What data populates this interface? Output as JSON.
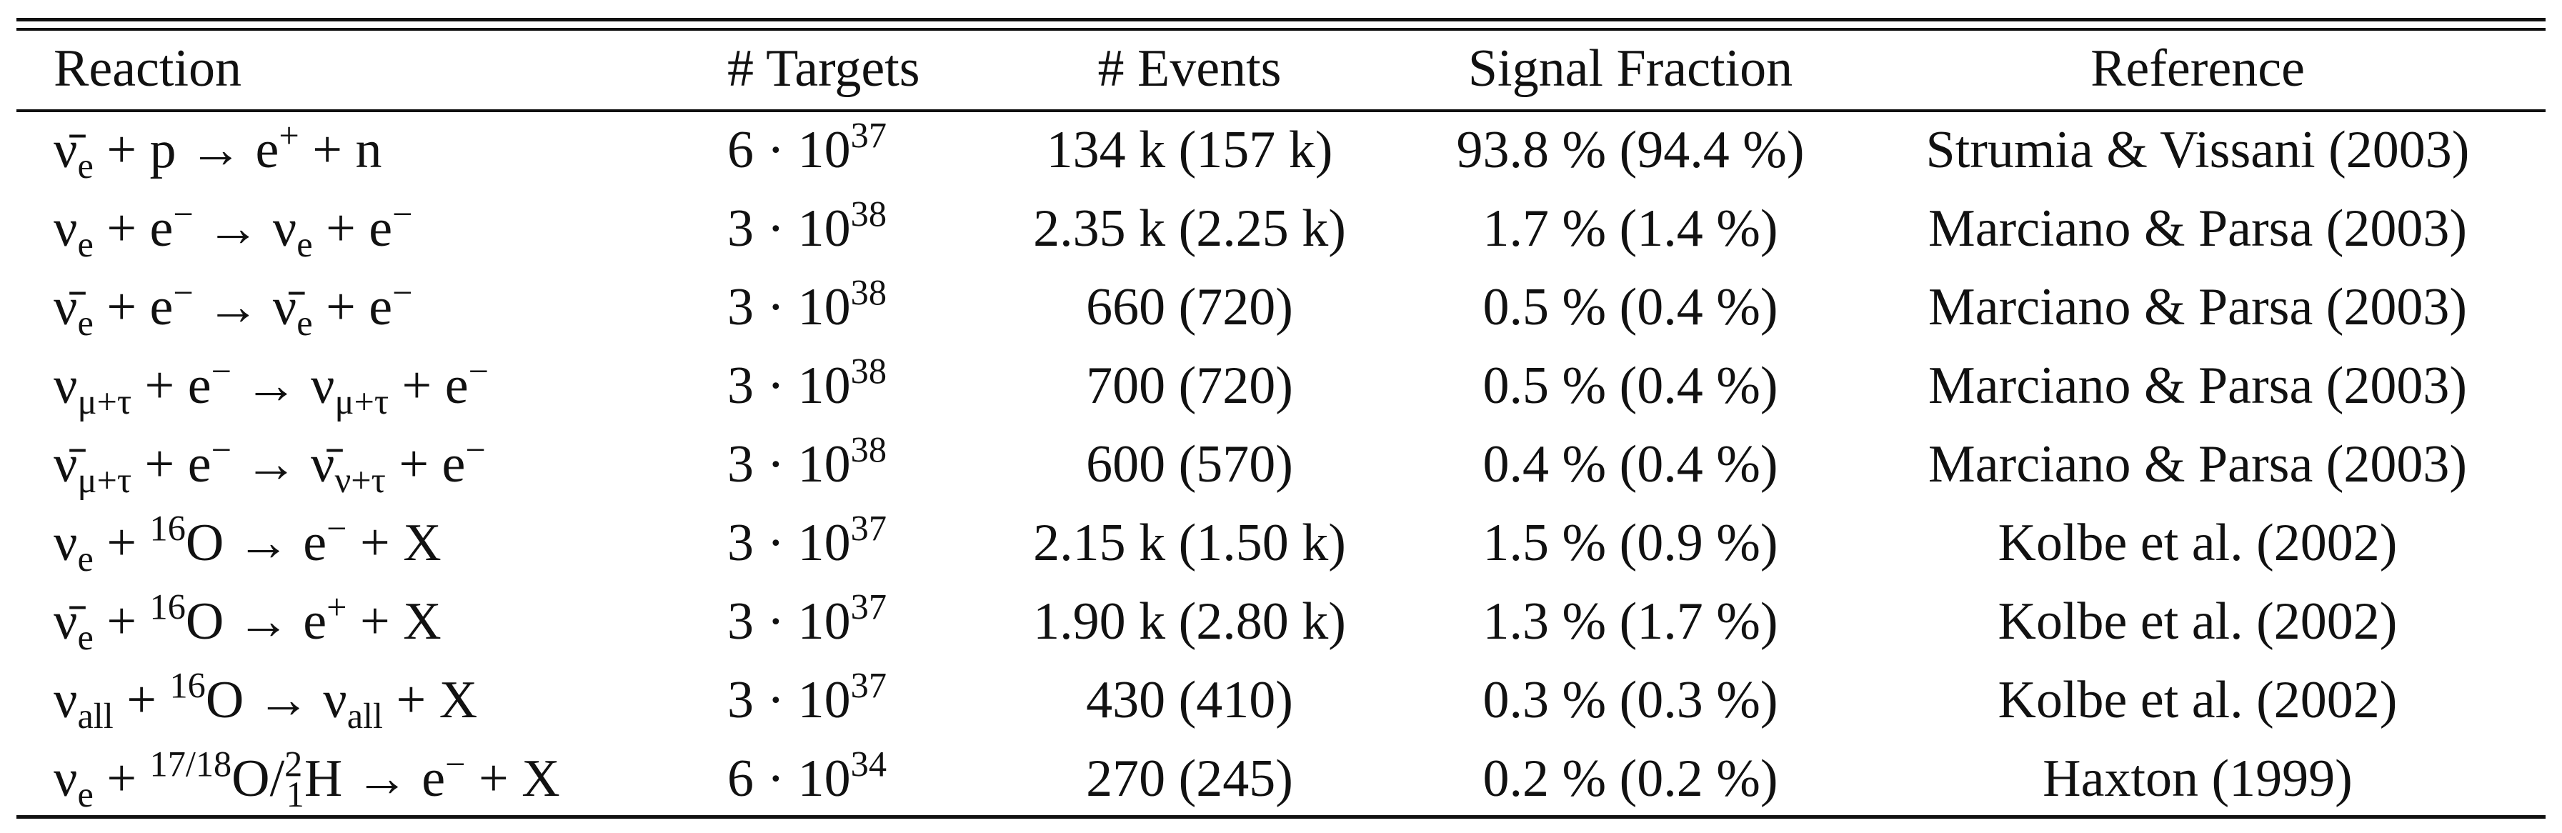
{
  "table": {
    "header": [
      "Reaction",
      "# Targets",
      "# Events",
      "Signal Fraction",
      "Reference"
    ],
    "rows": [
      [
        [
          "ν̄",
          "e",
          " + p → e",
          "+",
          " + n"
        ],
        [
          "6 · 10",
          "37"
        ],
        "134 k (157 k)",
        "93.8 % (94.4 %)",
        "Strumia & Vissani (2003)"
      ],
      [
        [
          "ν",
          "e",
          " + e",
          "−",
          " → ν",
          "e",
          " + e",
          "−"
        ],
        [
          "3 · 10",
          "38"
        ],
        "2.35 k (2.25 k)",
        "1.7 % (1.4 %)",
        "Marciano & Parsa (2003)"
      ],
      [
        [
          "ν̄",
          "e",
          " + e",
          "−",
          " → ν̄",
          "e",
          " + e",
          "−"
        ],
        [
          "3 · 10",
          "38"
        ],
        "660 (720)",
        "0.5 % (0.4 %)",
        "Marciano & Parsa (2003)"
      ],
      [
        [
          "ν",
          "μ+τ",
          " + e",
          "−",
          " → ν",
          "μ+τ",
          " + e",
          "−"
        ],
        [
          "3 · 10",
          "38"
        ],
        "700 (720)",
        "0.5 % (0.4 %)",
        "Marciano & Parsa (2003)"
      ],
      [
        [
          "ν̄",
          "μ+τ",
          " + e",
          "−",
          " → ν̄",
          "ν+τ",
          " + e",
          "−"
        ],
        [
          "3 · 10",
          "38"
        ],
        "600 (570)",
        "0.4 % (0.4 %)",
        "Marciano & Parsa (2003)"
      ],
      [
        [
          "ν",
          "e",
          " + ",
          "16",
          "O → e",
          "−",
          " + X"
        ],
        [
          "3 · 10",
          "37"
        ],
        "2.15 k (1.50 k)",
        "1.5 % (0.9 %)",
        "Kolbe et al. (2002)"
      ],
      [
        [
          "ν̄",
          "e",
          " + ",
          "16",
          "O → e",
          "+",
          " + X"
        ],
        [
          "3 · 10",
          "37"
        ],
        "1.90 k (2.80 k)",
        "1.3 % (1.7 %)",
        "Kolbe et al. (2002)"
      ],
      [
        [
          "ν",
          "all",
          " + ",
          "16",
          "O → ν",
          "all",
          " + X"
        ],
        [
          "3 · 10",
          "37"
        ],
        "430 (410)",
        "0.3 % (0.3 %)",
        "Kolbe et al. (2002)"
      ],
      [
        [
          "ν",
          "e",
          " + ",
          "17/18",
          "O/",
          "2",
          "1",
          "H → e",
          "−",
          " + X"
        ],
        [
          "6 · 10",
          "34"
        ],
        "270 (245)",
        "0.2 % (0.2 %)",
        "Haxton (1999)"
      ]
    ]
  }
}
